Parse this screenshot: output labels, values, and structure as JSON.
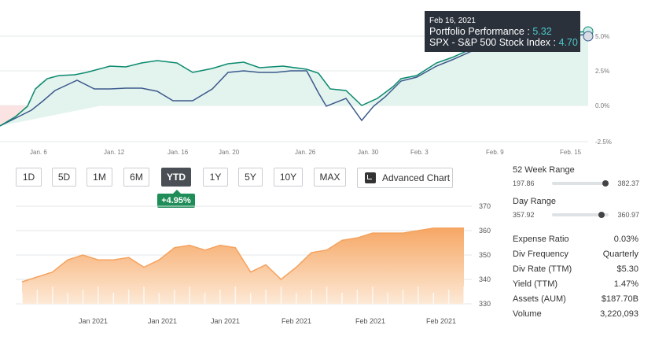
{
  "top_chart": {
    "x_labels": [
      "Jan. 6",
      "Jan. 12",
      "Jan. 16",
      "Jan. 20",
      "Jan. 26",
      "Jan. 30",
      "Feb. 3",
      "Feb. 9",
      "Feb. 15"
    ],
    "y_labels": [
      "5.0%",
      "2.5%",
      "0.0%",
      "-2.5%"
    ],
    "colors": {
      "portfolio": "#0b8a6e",
      "spx": "#3c5a8c",
      "fill_pos": "#e3f3ee",
      "fill_neg": "#fbe3e3"
    }
  },
  "tooltip": {
    "date": "Feb 16, 2021",
    "portfolio_label": "Portfolio Performance : ",
    "portfolio_value": "5.32",
    "spx_label": "SPX - S&P 500 Stock Index : ",
    "spx_value": "4.70"
  },
  "ranges": [
    {
      "label": "1D",
      "active": false
    },
    {
      "label": "5D",
      "active": false
    },
    {
      "label": "1M",
      "active": false
    },
    {
      "label": "6M",
      "active": false
    },
    {
      "label": "YTD",
      "active": true
    },
    {
      "label": "1Y",
      "active": false
    },
    {
      "label": "5Y",
      "active": false
    },
    {
      "label": "10Y",
      "active": false
    },
    {
      "label": "MAX",
      "active": false
    }
  ],
  "change_badge": "+4.95%",
  "advanced_chart_label": "Advanced Chart",
  "chart_data": {
    "type": "area",
    "x_labels": [
      "Jan 2021",
      "Jan 2021",
      "Jan 2021",
      "Feb 2021",
      "Feb 2021",
      "Feb 2021"
    ],
    "y_ticks": [
      "370",
      "360",
      "350",
      "340",
      "330"
    ],
    "ylim": [
      330,
      370
    ],
    "values": [
      339,
      341,
      343,
      348,
      350,
      348,
      348,
      349,
      345,
      348,
      353,
      354,
      352,
      354,
      353,
      343,
      346,
      340,
      345,
      351,
      352,
      356,
      357,
      359,
      359,
      359,
      360,
      361,
      361,
      361
    ],
    "color": "#f5a25d"
  },
  "stats": {
    "week52": {
      "title": "52 Week Range",
      "low": "197.86",
      "high": "382.37",
      "position": 0.95
    },
    "day": {
      "title": "Day Range",
      "low": "357.92",
      "high": "360.97",
      "position": 0.88
    },
    "rows": [
      {
        "key": "Expense Ratio",
        "value": "0.03%"
      },
      {
        "key": "Div Frequency",
        "value": "Quarterly"
      },
      {
        "key": "Div Rate (TTM)",
        "value": "$5.30"
      },
      {
        "key": "Yield (TTM)",
        "value": "1.47%"
      },
      {
        "key": "Assets (AUM)",
        "value": "$187.70B"
      },
      {
        "key": "Volume",
        "value": "3,220,093"
      }
    ]
  }
}
